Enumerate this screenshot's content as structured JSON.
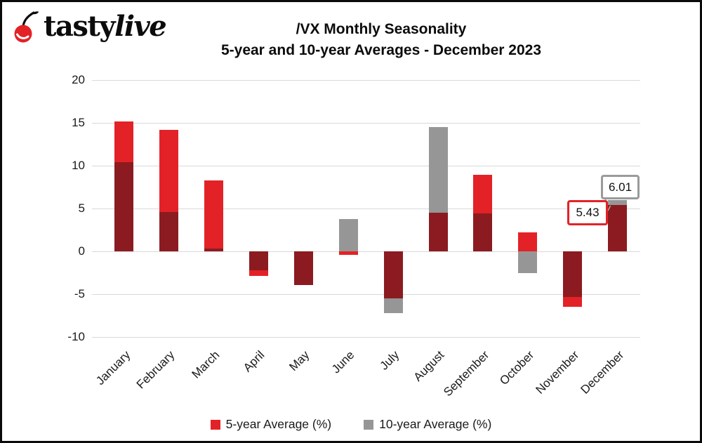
{
  "logo": {
    "brand_prefix": "tasty",
    "brand_suffix": "live"
  },
  "title": {
    "line1": "/VX Monthly Seasonality",
    "line2": "5-year and 10-year Averages - December 2023"
  },
  "colors": {
    "red": "#e32227",
    "gray": "#969696",
    "dark_overlap": "#8b1b20",
    "gridline": "#d9d9d9",
    "callout_gray_border": "#9a9a9a"
  },
  "chart_data": {
    "type": "bar",
    "bar_mode": "overlapping",
    "title": "/VX Monthly Seasonality 5-year and 10-year Averages - December 2023",
    "categories": [
      "January",
      "February",
      "March",
      "April",
      "May",
      "June",
      "July",
      "August",
      "September",
      "October",
      "November",
      "December"
    ],
    "series": [
      {
        "name": "5-year Average (%)",
        "color": "#e32227",
        "values": [
          15.2,
          14.2,
          8.3,
          -2.9,
          -3.9,
          -0.4,
          -5.5,
          4.5,
          8.9,
          2.2,
          -6.5,
          5.43
        ]
      },
      {
        "name": "10-year Average (%)",
        "color": "#969696",
        "values": [
          10.4,
          4.6,
          0.3,
          -2.2,
          -3.9,
          3.8,
          -7.2,
          14.5,
          4.4,
          -2.5,
          -5.3,
          6.01
        ]
      }
    ],
    "ylim": [
      -10,
      20
    ],
    "yticks": [
      20,
      15,
      10,
      5,
      0,
      -5,
      -10
    ],
    "grid": true,
    "legend_position": "bottom",
    "annotations": [
      {
        "month": "December",
        "series": "5-year Average (%)",
        "text": "5.43"
      },
      {
        "month": "December",
        "series": "10-year Average (%)",
        "text": "6.01"
      }
    ]
  }
}
